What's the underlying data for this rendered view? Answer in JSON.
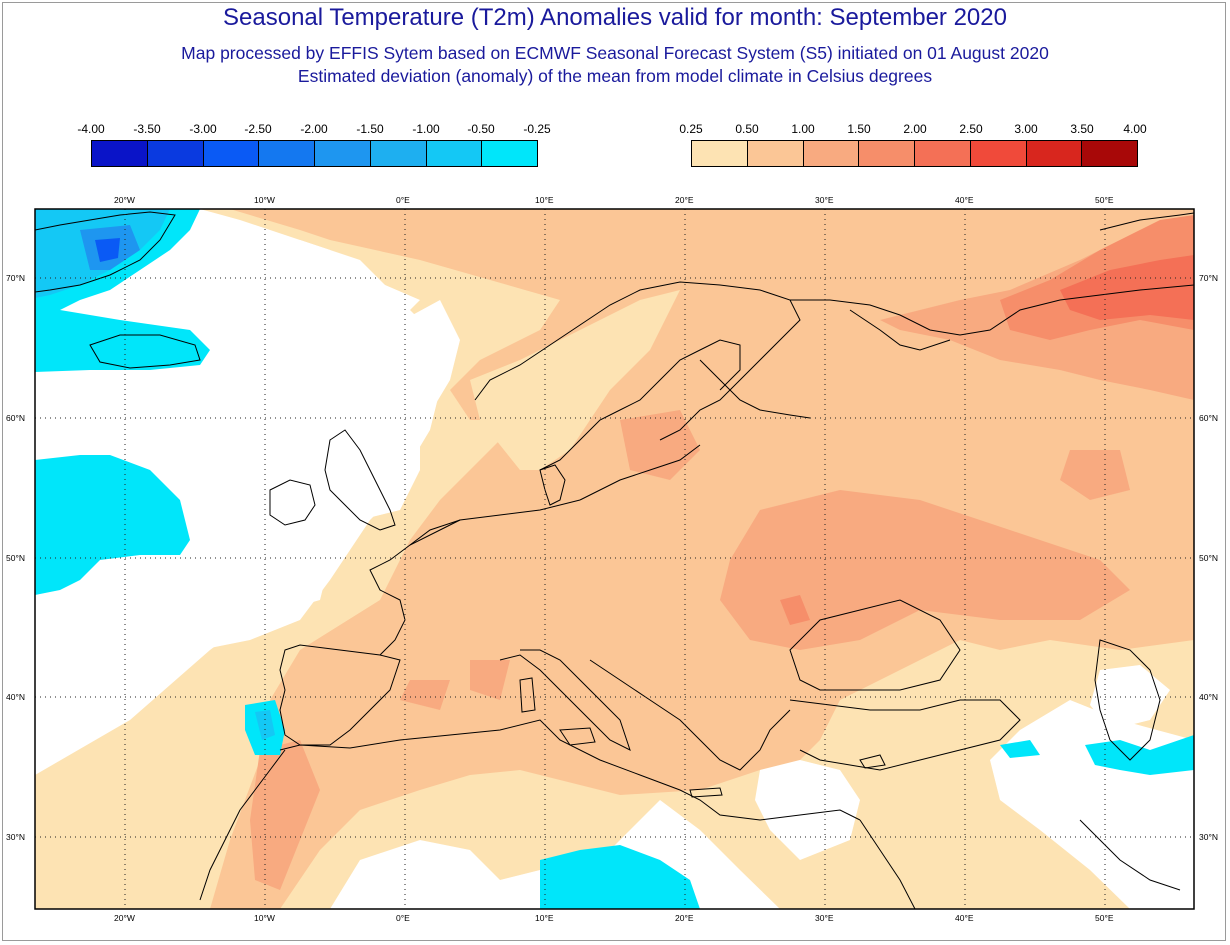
{
  "header": {
    "title": "Seasonal Temperature (T2m) Anomalies valid for month: September 2020",
    "subtitle1": "Map processed by EFFIS Sytem based on ECMWF Seasonal Forecast System (S5) initiated on 01 August 2020",
    "subtitle2": "Estimated deviation (anomaly) of the mean from model climate in Celsius degrees"
  },
  "legend": {
    "cold": {
      "labels": [
        "-4.00",
        "-3.50",
        "-3.00",
        "-2.50",
        "-2.00",
        "-1.50",
        "-1.00",
        "-0.50",
        "-0.25"
      ],
      "colors": [
        "#0a14c8",
        "#0a3ae0",
        "#0a5af5",
        "#1478f0",
        "#1e96f0",
        "#1eaff0",
        "#14c8f5",
        "#00e6fa"
      ]
    },
    "warm": {
      "labels": [
        "0.25",
        "0.50",
        "1.00",
        "1.50",
        "2.00",
        "2.50",
        "3.00",
        "3.50",
        "4.00"
      ],
      "colors": [
        "#fde3b3",
        "#fbc696",
        "#f8aa80",
        "#f68e6a",
        "#f47056",
        "#f04a3a",
        "#d8261e",
        "#a80808"
      ]
    }
  },
  "map": {
    "lon_labels": [
      "20°W",
      "10°W",
      "0°E",
      "10°E",
      "20°E",
      "30°E",
      "40°E",
      "50°E"
    ],
    "lat_labels": [
      "70°N",
      "60°N",
      "50°N",
      "40°N",
      "30°N"
    ],
    "lon_range": [
      -26.5,
      56.5
    ],
    "lat_range": [
      25,
      75.8
    ]
  }
}
